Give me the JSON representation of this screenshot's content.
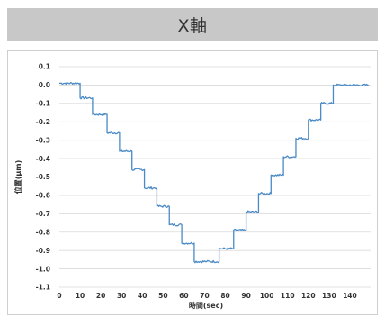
{
  "header": {
    "title": "X軸"
  },
  "chart_data": {
    "type": "line",
    "title": "X軸",
    "xlabel": "時間(sec)",
    "ylabel": "位置(μm)",
    "xlim": [
      0,
      150
    ],
    "ylim": [
      -1.1,
      0.1
    ],
    "x_ticks": [
      0,
      10,
      20,
      30,
      40,
      50,
      60,
      70,
      80,
      90,
      100,
      110,
      120,
      130,
      140
    ],
    "y_ticks": [
      0.1,
      0.0,
      -0.1,
      -0.2,
      -0.3,
      -0.4,
      -0.5,
      -0.6,
      -0.7,
      -0.8,
      -0.9,
      -1.0,
      -1.1
    ],
    "x_tick_labels": [
      "0",
      "10",
      "20",
      "30",
      "40",
      "50",
      "60",
      "70",
      "80",
      "90",
      "100",
      "110",
      "120",
      "130",
      "140"
    ],
    "y_tick_labels": [
      "0.1",
      "0.0",
      "-0.1",
      "-0.2",
      "-0.3",
      "-0.4",
      "-0.5",
      "-0.6",
      "-0.7",
      "-0.8",
      "-0.9",
      "-1.0",
      "-1.1"
    ],
    "grid": "horizontal",
    "line_color": "#4a8ac6",
    "series": [
      {
        "x": [
          0,
          10,
          10,
          16,
          16,
          23,
          23,
          29,
          29,
          35,
          35,
          41,
          41,
          47,
          47,
          53,
          53,
          59,
          59,
          65,
          65,
          71,
          71,
          77,
          77,
          84,
          84,
          90,
          90,
          96,
          96,
          102,
          102,
          108,
          108,
          114,
          114,
          120,
          120,
          126,
          126,
          132,
          132,
          138,
          138,
          144,
          144,
          149
        ],
        "y": [
          0.01,
          0.01,
          -0.07,
          -0.07,
          -0.16,
          -0.16,
          -0.26,
          -0.26,
          -0.36,
          -0.36,
          -0.46,
          -0.46,
          -0.56,
          -0.56,
          -0.66,
          -0.66,
          -0.76,
          -0.76,
          -0.86,
          -0.86,
          -0.96,
          -0.96,
          -0.96,
          -0.96,
          -0.89,
          -0.89,
          -0.79,
          -0.79,
          -0.69,
          -0.69,
          -0.59,
          -0.59,
          -0.49,
          -0.49,
          -0.39,
          -0.39,
          -0.29,
          -0.29,
          -0.19,
          -0.19,
          -0.1,
          -0.1,
          0.0,
          0.0,
          0.0,
          0.0,
          0.0,
          0.0
        ]
      }
    ]
  }
}
